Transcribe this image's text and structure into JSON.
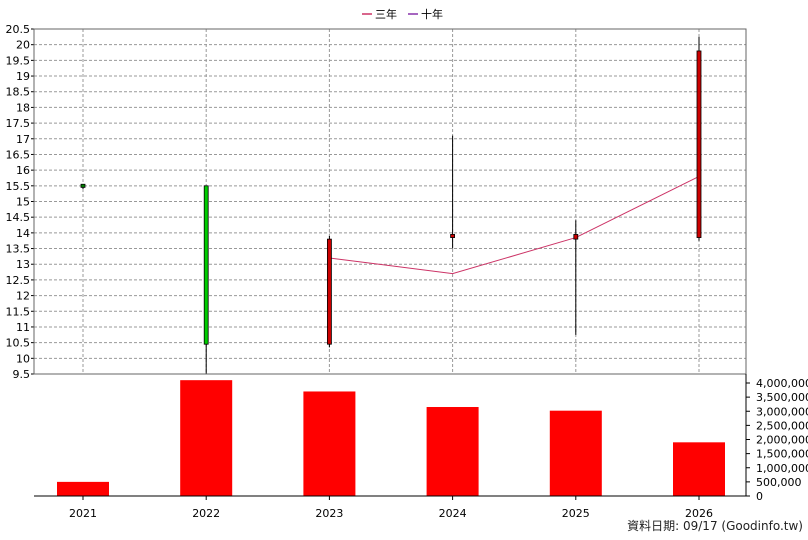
{
  "chart_data": {
    "type": "candlestick+bar",
    "legend": [
      {
        "label": "三年",
        "color": "#cc3366"
      },
      {
        "label": "十年",
        "color": "#8833aa"
      }
    ],
    "categories": [
      "2021",
      "2022",
      "2023",
      "2024",
      "2025",
      "2026"
    ],
    "price_axis": {
      "ylim": [
        9.5,
        20.5
      ],
      "ticks": [
        "20.5",
        "20",
        "19.5",
        "19",
        "18.5",
        "18",
        "17.5",
        "17",
        "16.5",
        "16",
        "15.5",
        "15",
        "14.5",
        "14",
        "13.5",
        "13",
        "12.5",
        "12",
        "11.5",
        "11",
        "10.5",
        "10",
        "9.5"
      ],
      "grid": true
    },
    "candles": [
      {
        "year": "2021",
        "open": 15.45,
        "close": 15.55,
        "high": 15.55,
        "low": 15.4,
        "color": "#008000"
      },
      {
        "year": "2022",
        "open": 15.5,
        "close": 10.45,
        "high": 15.5,
        "low": 9.5,
        "color": "#00cc00"
      },
      {
        "year": "2023",
        "open": 10.45,
        "close": 13.8,
        "high": 13.9,
        "low": 10.35,
        "color": "#cc0000"
      },
      {
        "year": "2024",
        "open": 13.85,
        "close": 13.95,
        "high": 17.1,
        "low": 13.5,
        "color": "#cc0000"
      },
      {
        "year": "2025",
        "open": 13.8,
        "close": 13.95,
        "high": 14.4,
        "low": 10.75,
        "color": "#cc0000"
      },
      {
        "year": "2026",
        "open": 13.85,
        "close": 19.8,
        "high": 20.25,
        "low": 13.75,
        "color": "#cc0000"
      }
    ],
    "ma_line": {
      "name": "三年",
      "color": "#cc3366",
      "points": [
        {
          "year": "2023",
          "value": 13.2
        },
        {
          "year": "2024",
          "value": 12.7
        },
        {
          "year": "2025",
          "value": 13.85
        },
        {
          "year": "2026",
          "value": 15.8
        }
      ]
    },
    "volume_axis": {
      "ylim": [
        0,
        4000000
      ],
      "ticks": [
        "4,000,000",
        "3,500,000",
        "3,000,000",
        "2,500,000",
        "2,000,000",
        "1,500,000",
        "1,000,000",
        "500,000",
        "0"
      ],
      "tick_values": [
        4000000,
        3500000,
        3000000,
        2500000,
        2000000,
        1500000,
        1000000,
        500000,
        0
      ]
    },
    "volume": [
      {
        "year": "2021",
        "value": 500000
      },
      {
        "year": "2022",
        "value": 4100000
      },
      {
        "year": "2023",
        "value": 3700000
      },
      {
        "year": "2024",
        "value": 3150000
      },
      {
        "year": "2025",
        "value": 3020000
      },
      {
        "year": "2026",
        "value": 1900000
      }
    ],
    "volume_color": "#ff0000"
  },
  "footer": "資料日期: 09/17  (Goodinfo.tw)"
}
